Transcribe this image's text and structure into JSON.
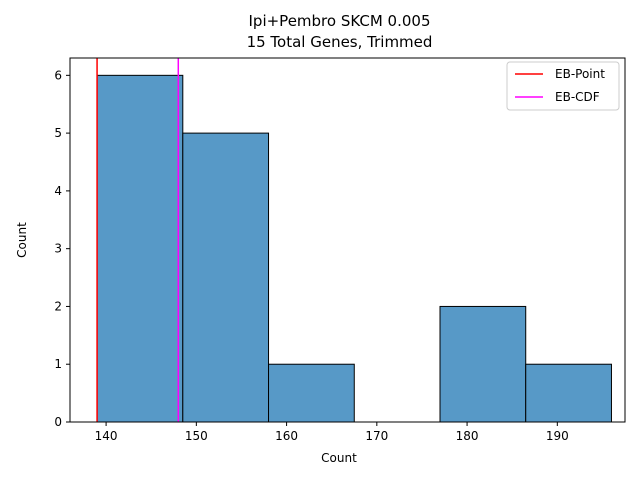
{
  "chart_data": {
    "type": "histogram",
    "title": [
      "Ipi+Pembro SKCM 0.005",
      "15 Total Genes, Trimmed"
    ],
    "xlabel": "Count",
    "ylabel": "Count",
    "xlim": [
      136,
      197.5
    ],
    "ylim": [
      0,
      6.3
    ],
    "xticks": [
      140,
      150,
      160,
      170,
      180,
      190
    ],
    "yticks": [
      0,
      1,
      2,
      3,
      4,
      5,
      6
    ],
    "bins": [
      {
        "start": 139.0,
        "end": 148.5,
        "count": 6
      },
      {
        "start": 148.5,
        "end": 158.0,
        "count": 5
      },
      {
        "start": 158.0,
        "end": 167.5,
        "count": 1
      },
      {
        "start": 167.5,
        "end": 177.0,
        "count": 0
      },
      {
        "start": 177.0,
        "end": 186.5,
        "count": 2
      },
      {
        "start": 186.5,
        "end": 196.0,
        "count": 1
      }
    ],
    "bar_color": "#5799c7",
    "vlines": [
      {
        "name": "EB-Point",
        "x": 139.0,
        "color": "#ff0000"
      },
      {
        "name": "EB-CDF",
        "x": 148.0,
        "color": "#ff00ff"
      }
    ],
    "legend": {
      "position": "top-right",
      "entries": [
        "EB-Point",
        "EB-CDF"
      ]
    },
    "grid": false
  }
}
